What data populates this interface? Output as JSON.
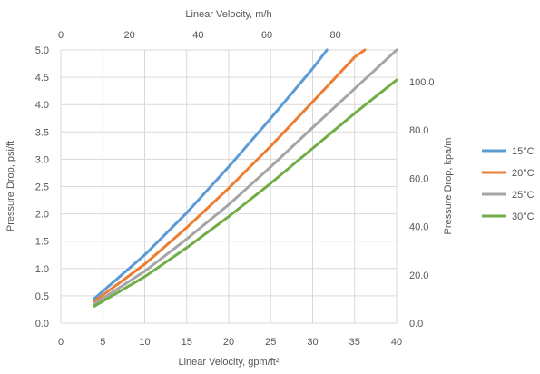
{
  "chart_data": {
    "type": "line",
    "xlabel": "Linear Velocity, gpm/ft²",
    "x2label": "Linear Velocity, m/h",
    "ylabel": "Pressure Drop, psi/ft",
    "y2label": "Pressure Drop, kpa/m",
    "xlim": [
      0,
      40
    ],
    "x2lim": [
      0,
      97.8
    ],
    "ylim": [
      0,
      5
    ],
    "y2lim": [
      0,
      113.1
    ],
    "x_ticks": [
      "0",
      "5",
      "10",
      "15",
      "20",
      "25",
      "30",
      "35",
      "40"
    ],
    "x2_ticks": [
      "0",
      "20",
      "40",
      "60",
      "80"
    ],
    "y_ticks": [
      "0.0",
      "0.5",
      "1.0",
      "1.5",
      "2.0",
      "2.5",
      "3.0",
      "3.5",
      "4.0",
      "4.5",
      "5.0"
    ],
    "y2_ticks": [
      "0.0",
      "20.0",
      "40.0",
      "60.0",
      "80.0",
      "100.0"
    ],
    "grid": true,
    "legend_position": "right",
    "series": [
      {
        "name": "15°C",
        "color": "#5B9BD5",
        "x": [
          4,
          10,
          15,
          20,
          25,
          30,
          31.7
        ],
        "y": [
          0.45,
          1.25,
          2.02,
          2.86,
          3.75,
          4.66,
          5.0
        ]
      },
      {
        "name": "20°C",
        "color": "#ED7D31",
        "x": [
          4,
          10,
          15,
          20,
          25,
          30,
          35,
          36.2
        ],
        "y": [
          0.4,
          1.08,
          1.75,
          2.47,
          3.24,
          4.05,
          4.87,
          5.0
        ]
      },
      {
        "name": "25°C",
        "color": "#A5A5A5",
        "x": [
          4,
          10,
          15,
          20,
          25,
          30,
          35,
          40
        ],
        "y": [
          0.35,
          0.95,
          1.54,
          2.17,
          2.86,
          3.58,
          4.29,
          5.0
        ]
      },
      {
        "name": "30°C",
        "color": "#70AD47",
        "x": [
          4,
          10,
          15,
          20,
          25,
          30,
          35,
          40
        ],
        "y": [
          0.31,
          0.85,
          1.38,
          1.95,
          2.56,
          3.2,
          3.84,
          4.45
        ]
      }
    ]
  }
}
